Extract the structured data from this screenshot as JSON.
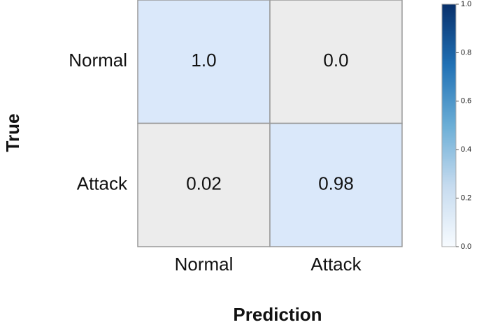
{
  "chart_data": {
    "type": "heatmap",
    "x_label": "Prediction",
    "y_label": "True",
    "x_categories": [
      "Normal",
      "Attack"
    ],
    "y_categories": [
      "Normal",
      "Attack"
    ],
    "values": [
      [
        1.0,
        0.0
      ],
      [
        0.02,
        0.98
      ]
    ],
    "value_labels": [
      [
        "1.0",
        "0.0"
      ],
      [
        "0.02",
        "0.98"
      ]
    ],
    "cell_colors": [
      [
        "#dae8fa",
        "#ececec"
      ],
      [
        "#ececec",
        "#dae8fa"
      ]
    ],
    "colorbar_colors": [
      "#f7fbff",
      "#c6dbef",
      "#6baed6",
      "#2171b5",
      "#08306b"
    ],
    "clim": [
      0,
      1
    ],
    "cticks": [
      {
        "value": 0,
        "label": "0.0"
      },
      0.2,
      0.4,
      0.6,
      0.8,
      {
        "value": 1,
        "label": "1.0"
      }
    ]
  }
}
